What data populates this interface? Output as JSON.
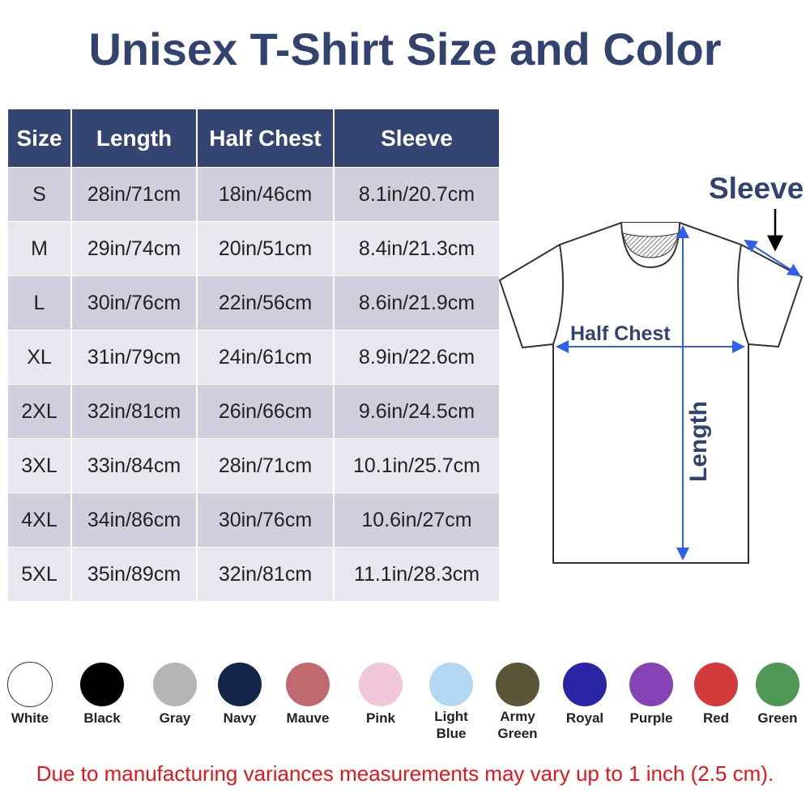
{
  "title": "Unisex T-Shirt Size and Color",
  "table": {
    "headers": [
      "Size",
      "Length",
      "Half Chest",
      "Sleeve"
    ],
    "rows": [
      [
        "S",
        "28in/71cm",
        "18in/46cm",
        "8.1in/20.7cm"
      ],
      [
        "M",
        "29in/74cm",
        "20in/51cm",
        "8.4in/21.3cm"
      ],
      [
        "L",
        "30in/76cm",
        "22in/56cm",
        "8.6in/21.9cm"
      ],
      [
        "XL",
        "31in/79cm",
        "24in/61cm",
        "8.9in/22.6cm"
      ],
      [
        "2XL",
        "32in/81cm",
        "26in/66cm",
        "9.6in/24.5cm"
      ],
      [
        "3XL",
        "33in/84cm",
        "28in/71cm",
        "10.1in/25.7cm"
      ],
      [
        "4XL",
        "34in/86cm",
        "30in/76cm",
        "10.6in/27cm"
      ],
      [
        "5XL",
        "35in/89cm",
        "32in/81cm",
        "11.1in/28.3cm"
      ]
    ]
  },
  "diagram": {
    "sleeve_label": "Sleeve",
    "chest_label": "Half Chest",
    "length_label": "Length",
    "arrow_color": "#2f5ff0"
  },
  "colors": [
    {
      "name": "White",
      "hex": "#ffffff"
    },
    {
      "name": "Black",
      "hex": "#000000"
    },
    {
      "name": "Gray",
      "hex": "#b5b5b5"
    },
    {
      "name": "Navy",
      "hex": "#13264a"
    },
    {
      "name": "Mauve",
      "hex": "#c06a70"
    },
    {
      "name": "Pink",
      "hex": "#f3c7da"
    },
    {
      "name": "Light Blue",
      "hex": "#b2d8f4"
    },
    {
      "name": "Army Green",
      "hex": "#5b5637"
    },
    {
      "name": "Royal",
      "hex": "#2a25a4"
    },
    {
      "name": "Purple",
      "hex": "#8543b5"
    },
    {
      "name": "Red",
      "hex": "#d33a3a"
    },
    {
      "name": "Green",
      "hex": "#4f9757"
    }
  ],
  "disclaimer": "Due to manufacturing variances measurements may vary up to 1 inch (2.5 cm)."
}
